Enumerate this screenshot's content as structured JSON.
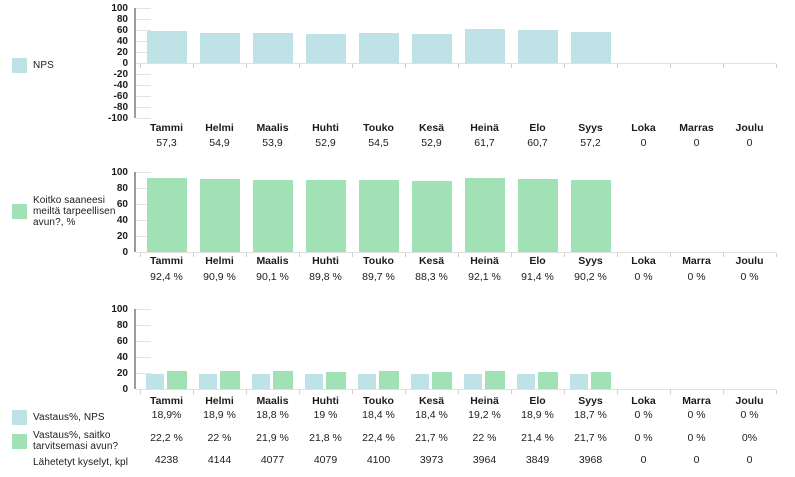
{
  "colors": {
    "blue": "#bfe2e6",
    "green": "#a2e1b5"
  },
  "chart_data": [
    {
      "type": "bar",
      "title": "",
      "legend": [
        {
          "color_key": "blue",
          "label": "NPS"
        }
      ],
      "legend_position": "left",
      "grid": false,
      "categories": [
        "Tammi",
        "Helmi",
        "Maalis",
        "Huhti",
        "Touko",
        "Kesä",
        "Heinä",
        "Elo",
        "Syys",
        "Loka",
        "Marras",
        "Joulu"
      ],
      "series": [
        {
          "name": "NPS",
          "color_key": "blue",
          "values": [
            57.3,
            54.9,
            53.9,
            52.9,
            54.5,
            52.9,
            61.7,
            60.7,
            57.2,
            0,
            0,
            0
          ],
          "value_labels": [
            "57,3",
            "54,9",
            "53,9",
            "52,9",
            "54,5",
            "52,9",
            "61,7",
            "60,7",
            "57,2",
            "0",
            "0",
            "0"
          ]
        }
      ],
      "ylim": [
        -100,
        100
      ],
      "yticks": [
        "100",
        "80",
        "60",
        "40",
        "20",
        "0",
        "-20",
        "-40",
        "-60",
        "-80",
        "-100"
      ]
    },
    {
      "type": "bar",
      "title": "",
      "legend": [
        {
          "color_key": "green",
          "label": "Koitko saaneesi meiltä tarpeellisen avun?, %"
        }
      ],
      "legend_position": "left",
      "grid": false,
      "categories": [
        "Tammi",
        "Helmi",
        "Maalis",
        "Huhti",
        "Touko",
        "Kesä",
        "Heinä",
        "Elo",
        "Syys",
        "Loka",
        "Marra",
        "Joulu"
      ],
      "series": [
        {
          "name": "Koitko saaneesi meiltä tarpeellisen avun?, %",
          "color_key": "green",
          "values": [
            92.4,
            90.9,
            90.1,
            89.8,
            89.7,
            88.3,
            92.1,
            91.4,
            90.2,
            0,
            0,
            0
          ],
          "value_labels": [
            "92,4 %",
            "90,9 %",
            "90,1 %",
            "89,8 %",
            "89,7 %",
            "88,3 %",
            "92,1 %",
            "91,4 %",
            "90,2 %",
            "0 %",
            "0 %",
            "0 %"
          ]
        }
      ],
      "ylim": [
        0,
        100
      ],
      "yticks": [
        "100",
        "80",
        "60",
        "40",
        "20",
        "0"
      ]
    },
    {
      "type": "bar",
      "title": "",
      "legend": [
        {
          "color_key": "blue",
          "label": "Vastaus%, NPS"
        },
        {
          "color_key": "green",
          "label": "Vastaus%, saitko tarvitsemasi avun?"
        },
        {
          "color_key": "none",
          "label": "Lähetetyt kyselyt, kpl"
        }
      ],
      "legend_position": "left",
      "grid": false,
      "categories": [
        "Tammi",
        "Helmi",
        "Maalis",
        "Huhti",
        "Touko",
        "Kesä",
        "Heinä",
        "Elo",
        "Syys",
        "Loka",
        "Marra",
        "Joulu"
      ],
      "series": [
        {
          "name": "Vastaus%, NPS",
          "color_key": "blue",
          "values": [
            18.9,
            18.9,
            18.8,
            19,
            18.4,
            18.4,
            19.2,
            18.9,
            18.7,
            0,
            0,
            0
          ],
          "value_labels": [
            "18,9%",
            "18,9 %",
            "18,8 %",
            "19 %",
            "18,4 %",
            "18,4 %",
            "19,2 %",
            "18,9 %",
            "18,7 %",
            "0 %",
            "0 %",
            "0 %"
          ]
        },
        {
          "name": "Vastaus%, saitko tarvitsemasi avun?",
          "color_key": "green",
          "values": [
            22.2,
            22,
            21.9,
            21.8,
            22.4,
            21.7,
            22,
            21.4,
            21.7,
            0,
            0,
            0
          ],
          "value_labels": [
            "22,2 %",
            "22 %",
            "21,9 %",
            "21,8 %",
            "22,4 %",
            "21,7 %",
            "22 %",
            "21,4 %",
            "21,7 %",
            "0 %",
            "0 %",
            "0%"
          ]
        }
      ],
      "extra_rows": [
        {
          "name": "Lähetetyt kyselyt, kpl",
          "value_labels": [
            "4238",
            "4144",
            "4077",
            "4079",
            "4100",
            "3973",
            "3964",
            "3849",
            "3968",
            "0",
            "0",
            "0"
          ]
        }
      ],
      "ylim": [
        0,
        100
      ],
      "yticks": [
        "100",
        "80",
        "60",
        "40",
        "20",
        "0"
      ]
    }
  ]
}
